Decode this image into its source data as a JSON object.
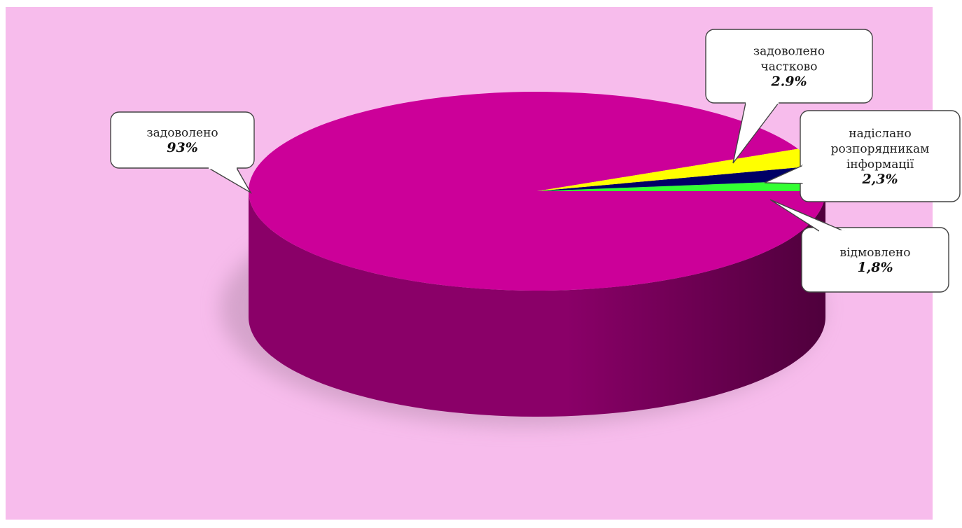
{
  "chart_data": {
    "type": "pie",
    "style": "3d",
    "slices": [
      {
        "label_lines": [
          "задоволено"
        ],
        "value_label": "93%",
        "value": 93,
        "color": "#CC0099"
      },
      {
        "label_lines": [
          "відмовлено"
        ],
        "value_label": "1,8%",
        "value": 1.8,
        "color": "#33FF33"
      },
      {
        "label_lines": [
          "надіслано",
          "розпорядникам",
          "інформації"
        ],
        "value_label": "2,3%",
        "value": 2.3,
        "color": "#000066"
      },
      {
        "label_lines": [
          "задоволено",
          "частково"
        ],
        "value_label": "2.9%",
        "value": 2.9,
        "color": "#FFFF00"
      }
    ],
    "colors": {
      "plot_background": "#F7BCEC",
      "page_background": "#FFFFFF",
      "side_shade": "#8A0068",
      "side_dark": "#4F003C",
      "callout_fill": "#FFFFFF",
      "callout_border": "#444444"
    }
  }
}
